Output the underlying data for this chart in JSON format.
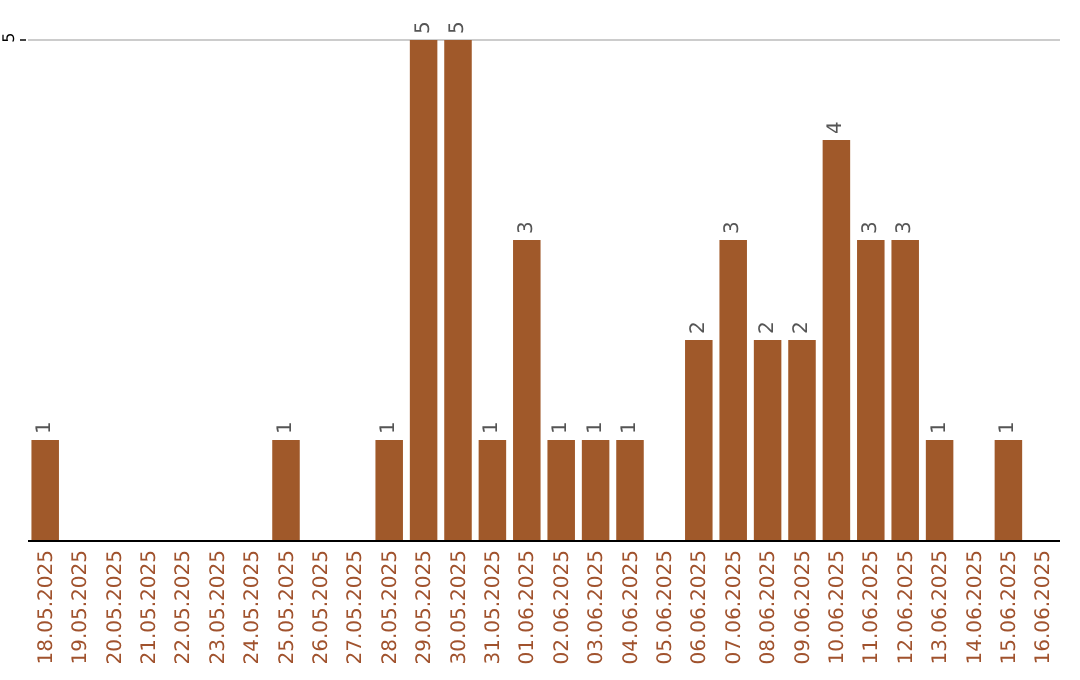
{
  "chart_data": {
    "type": "bar",
    "categories": [
      "18.05.2025",
      "19.05.2025",
      "20.05.2025",
      "21.05.2025",
      "22.05.2025",
      "23.05.2025",
      "24.05.2025",
      "25.05.2025",
      "26.05.2025",
      "27.05.2025",
      "28.05.2025",
      "29.05.2025",
      "30.05.2025",
      "31.05.2025",
      "01.06.2025",
      "02.06.2025",
      "03.06.2025",
      "04.06.2025",
      "05.06.2025",
      "06.06.2025",
      "07.06.2025",
      "08.06.2025",
      "09.06.2025",
      "10.06.2025",
      "11.06.2025",
      "12.06.2025",
      "13.06.2025",
      "14.06.2025",
      "15.06.2025",
      "16.06.2025"
    ],
    "values": [
      1,
      0,
      0,
      0,
      0,
      0,
      0,
      1,
      0,
      0,
      1,
      5,
      5,
      1,
      3,
      1,
      1,
      1,
      0,
      2,
      3,
      2,
      2,
      4,
      3,
      3,
      1,
      0,
      1,
      0
    ],
    "value_labels": [
      "1",
      null,
      null,
      null,
      null,
      null,
      null,
      "1",
      null,
      null,
      "1",
      "5",
      "5",
      "1",
      "3",
      "1",
      "1",
      "1",
      null,
      "2",
      "3",
      "2",
      "2",
      "4",
      "3",
      "3",
      "1",
      null,
      "1",
      null
    ],
    "color": "#a0592a",
    "ylim": [
      0,
      5.4
    ],
    "yticks": [
      5
    ],
    "grid": "y",
    "legend": false
  }
}
